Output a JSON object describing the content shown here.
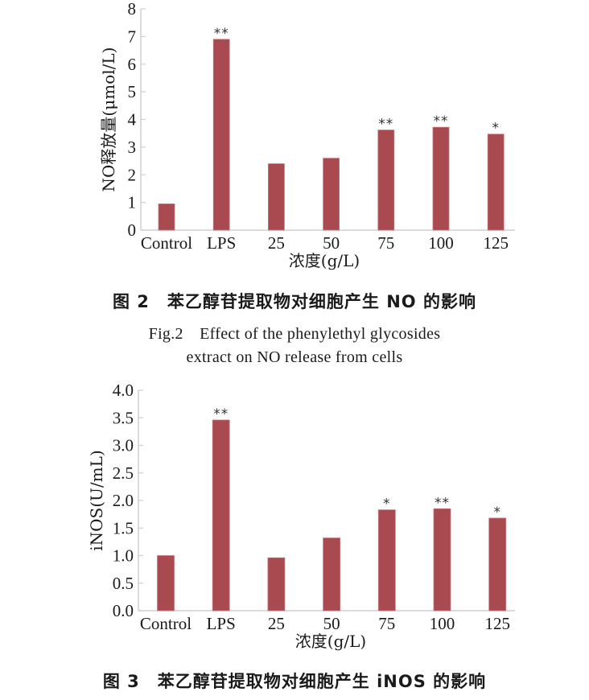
{
  "colors": {
    "bar": "#a84a50",
    "bar_edge": "#c7787c",
    "axis": "#cfcfcf",
    "text": "#1a1a1a"
  },
  "chart_data": [
    {
      "type": "bar",
      "title": "图 2　苯乙醇苷提取物对细胞产生 NO 的影响",
      "title_en": "Fig.2　Effect of the phenylethyl glycosides extract on NO release from cells",
      "xlabel": "浓度(g/L)",
      "ylabel": "NO释放量(μmol/L)",
      "categories": [
        "Control",
        "LPS",
        "25",
        "50",
        "75",
        "100",
        "125"
      ],
      "values": [
        0.95,
        6.9,
        2.4,
        2.6,
        3.62,
        3.72,
        3.47
      ],
      "annotations": [
        "",
        "**",
        "",
        "",
        "**",
        "**",
        "*"
      ],
      "ylim": [
        0,
        8
      ],
      "yticks": [
        "0",
        "1",
        "2",
        "3",
        "4",
        "5",
        "6",
        "7",
        "8"
      ],
      "grid": false,
      "legend": null
    },
    {
      "type": "bar",
      "title": "图 3　苯乙醇苷提取物对细胞产生 iNOS 的影响",
      "xlabel": "浓度(g/L)",
      "ylabel": "iNOS(U/mL)",
      "categories": [
        "Control",
        "LPS",
        "25",
        "50",
        "75",
        "100",
        "125"
      ],
      "values": [
        1.0,
        3.46,
        0.96,
        1.32,
        1.83,
        1.85,
        1.68
      ],
      "annotations": [
        "",
        "**",
        "",
        "",
        "*",
        "**",
        "*"
      ],
      "ylim": [
        0,
        4.0
      ],
      "yticks": [
        "0.0",
        "0.5",
        "1.0",
        "1.5",
        "2.0",
        "2.5",
        "3.0",
        "3.5",
        "4.0"
      ],
      "grid": false,
      "legend": null
    }
  ],
  "captions": {
    "fig2_cn": "图 2　苯乙醇苷提取物对细胞产生 NO 的影响",
    "fig2_en_line1": "Fig.2　Effect of the phenylethyl glycosides",
    "fig2_en_line2": "extract on NO release from cells",
    "fig3_cn": "图 3　苯乙醇苷提取物对细胞产生 iNOS 的影响"
  }
}
